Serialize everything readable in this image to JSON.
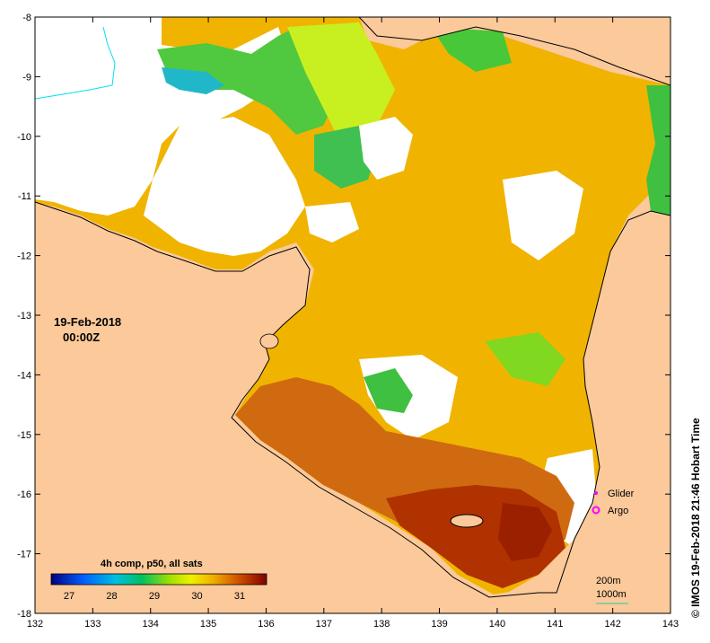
{
  "map": {
    "date": "19-Feb-2018",
    "time": "00:00Z",
    "credit": "© IMOS 19-Feb-2018 21:46 Hobart Time",
    "lon_ticks": [
      "132",
      "133",
      "134",
      "135",
      "136",
      "137",
      "138",
      "139",
      "140",
      "141",
      "142",
      "143"
    ],
    "lat_ticks": [
      "-8",
      "-9",
      "-10",
      "-11",
      "-12",
      "-13",
      "-14",
      "-15",
      "-16",
      "-17",
      "-18"
    ],
    "colorbar": {
      "title": "4h comp, p50, all sats",
      "labels": [
        "27",
        "28",
        "29",
        "30",
        "31"
      ],
      "colors": [
        "#00007f",
        "#0040ff",
        "#00c0ff",
        "#00c080",
        "#40d000",
        "#c0f000",
        "#f0c000",
        "#e08000",
        "#c04000",
        "#800000"
      ]
    },
    "legend": {
      "glider": "Glider",
      "argo": "Argo",
      "scale_200": "200m",
      "scale_1000": "1000m"
    },
    "colors": {
      "land": "#fbc99a",
      "warm": "#d06010",
      "hot": "#b02a00",
      "mid": "#f0b000",
      "cool": "#d8f020",
      "green": "#40c040",
      "cyan": "#20b0d0",
      "marker": "#ff00ff"
    }
  }
}
